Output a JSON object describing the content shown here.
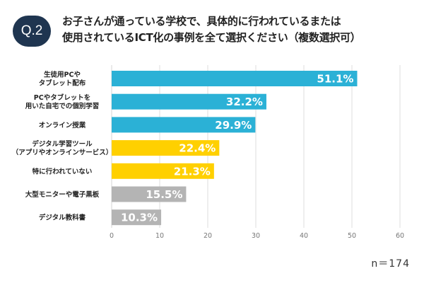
{
  "badge": "Q.2",
  "title_lines": [
    "お子さんが通っている学校で、具体的に行われているまたは",
    "使用されているICT化の事例を全て選択ください（複数選択可）"
  ],
  "sample_size": "n＝174",
  "colors": {
    "blue": "#2bb1d6",
    "yellow": "#ffd000",
    "gray": "#b4b4b4",
    "badge": "#1f3550",
    "grid": "#dcdcdc"
  },
  "chart_data": {
    "type": "bar",
    "orientation": "horizontal",
    "categories": [
      [
        "生徒用PCや",
        "タブレット配布"
      ],
      [
        "PCやタブレットを",
        "用いた自宅での個別学習"
      ],
      [
        "オンライン授業"
      ],
      [
        "デジタル学習ツール",
        "（アプリやオンラインサービス）"
      ],
      [
        "特に行われていない"
      ],
      [
        "大型モニターや電子黒板"
      ],
      [
        "デジタル教科書"
      ]
    ],
    "values": [
      51.1,
      32.2,
      29.9,
      22.4,
      21.3,
      15.5,
      10.3
    ],
    "value_labels": [
      "51.1%",
      "32.2%",
      "29.9%",
      "22.4%",
      "21.3%",
      "15.5%",
      "10.3%"
    ],
    "bar_colors": [
      "blue",
      "blue",
      "blue",
      "yellow",
      "yellow",
      "gray",
      "gray"
    ],
    "xlim": [
      0,
      60
    ],
    "xticks": [
      0,
      10,
      20,
      30,
      40,
      50,
      60
    ],
    "grid": true
  }
}
